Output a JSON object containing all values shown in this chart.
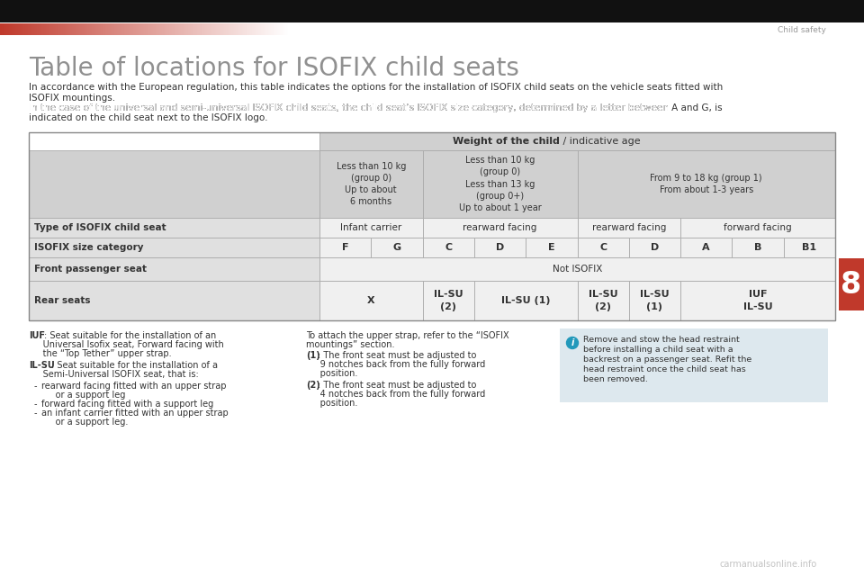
{
  "bg_color": "#ffffff",
  "header_bar_color": "#111111",
  "red_color": "#c0392b",
  "chapter_num_color": "#c0392b",
  "chapter_num": "8",
  "header_text": "Child safety",
  "title": "Table of locations for ISOFIX child seats",
  "title_color": "#909090",
  "body_text_color": "#333333",
  "table_header_bg": "#d0d0d0",
  "table_cell_bg_light": "#f0f0f0",
  "table_cell_bg_dark": "#e0e0e0",
  "table_border_color": "#aaaaaa",
  "weight_header_bold": "Weight of the child",
  "weight_header_normal": " / indicative age",
  "col_header_1": "Less than 10 kg\n(group 0)\nUp to about\n6 months",
  "col_header_2": "Less than 10 kg\n(group 0)\nLess than 13 kg\n(group 0+)\nUp to about 1 year",
  "col_header_3": "From 9 to 18 kg (group 1)\nFrom about 1-3 years",
  "row_type_label": "Type of ISOFIX child seat",
  "row_size_label": "ISOFIX size category",
  "row_front_label": "Front passenger seat",
  "row_rear_label": "Rear seats",
  "row_front_val": "Not ISOFIX",
  "type_spans": [
    [
      0,
      2,
      "Infant carrier"
    ],
    [
      2,
      5,
      "rearward facing"
    ],
    [
      5,
      7,
      "rearward facing"
    ],
    [
      7,
      10,
      "forward facing"
    ]
  ],
  "size_vals": [
    "F",
    "G",
    "C",
    "D",
    "E",
    "C",
    "D",
    "A",
    "B",
    "B1"
  ],
  "rear_spans": [
    [
      0,
      2,
      "X"
    ],
    [
      2,
      3,
      "IL-SU\n(2)"
    ],
    [
      3,
      5,
      "IL-SU (1)"
    ],
    [
      5,
      6,
      "IL-SU\n(2)"
    ],
    [
      6,
      7,
      "IL-SU\n(1)"
    ],
    [
      7,
      10,
      "IUF\nIL-SU"
    ]
  ],
  "intro_line1": "In accordance with the European regulation, this table indicates the options for the installation of ISOFIX child seats on the vehicle seats fitted with",
  "intro_line2": "ISOFIX mountings.",
  "intro_line3": "In the case of the universal and semi-universal ISOFIX child seats, the child seat’s ISOFIX size category, determined by a letter between ",
  "intro_line3_bold1": "A",
  "intro_line3_mid": " and ",
  "intro_line3_bold2": "G",
  "intro_line3_end": ", is",
  "intro_line4": "indicated on the child seat next to the ISOFIX logo.",
  "fn1_bold": "IUF",
  "fn1_text": ": Seat suitable for the installation of an",
  "fn1_line2": "     Universal Isofix seat, Forward facing with",
  "fn1_line3": "     the “Top Tether” upper strap.",
  "fn2_bold": "IL-SU",
  "fn2_text": ": Seat suitable for the installation of a",
  "fn2_line2": "     Semi-Universal ISOFIX seat, that is:",
  "fn_bullets": [
    "rearward facing fitted with an upper strap",
    "     or a support leg",
    "forward facing fitted with a support leg",
    "an infant carrier fitted with an upper strap",
    "     or a support leg."
  ],
  "fn_col2_line1": "To attach the upper strap, refer to the “ISOFIX",
  "fn_col2_line2": "mountings” section.",
  "fn_col2_bold1": "(1)",
  "fn_col2_text1": ": The front seat must be adjusted to",
  "fn_col2_text1b": "     9 notches back from the fully forward",
  "fn_col2_text1c": "     position.",
  "fn_col2_bold2": "(2)",
  "fn_col2_text2": ": The front seat must be adjusted to",
  "fn_col2_text2b": "     4 notches back from the fully forward",
  "fn_col2_text2c": "     position.",
  "info_box_bg": "#dde8ee",
  "info_icon_color": "#2299bb",
  "info_text_line1": "Remove and stow the head restraint",
  "info_text_line2": "before installing a child seat with a",
  "info_text_line3": "backrest on a passenger seat. Refit the",
  "info_text_line4": "head restraint once the child seat has",
  "info_text_line5": "been removed.",
  "watermark": "carmanualsonline.info"
}
